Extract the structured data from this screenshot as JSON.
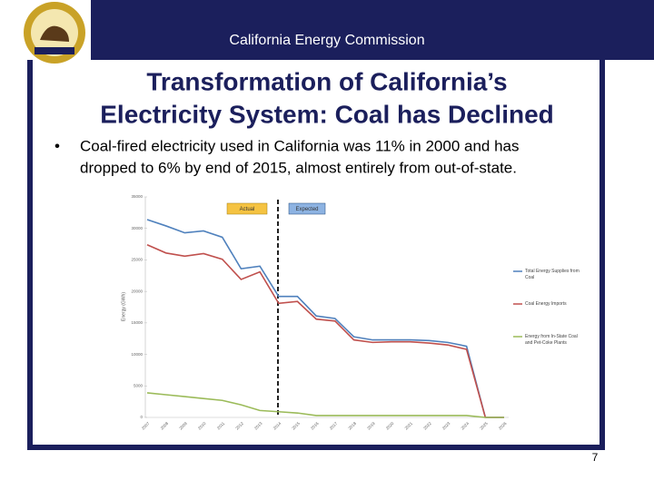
{
  "header": {
    "organization": "California Energy Commission"
  },
  "slide": {
    "title_line1": "Transformation of California’s",
    "title_line2": "Electricity System: Coal has Declined",
    "bullet_line1": "Coal-fired electricity used in California was 11% in 2000 and has",
    "bullet_line2": "dropped to 6% by end of 2015, almost entirely from out-of-state.",
    "page_number": "7"
  },
  "chart_data": {
    "type": "line",
    "y_label": "Energy (GWh)",
    "annotations": [
      "Actual",
      "Expected"
    ],
    "x": [
      "2007",
      "2008",
      "2009",
      "2010",
      "2011",
      "2012",
      "2013",
      "2014",
      "2015",
      "2016",
      "2017",
      "2018",
      "2019",
      "2020",
      "2021",
      "2022",
      "2023",
      "2024",
      "2025",
      "2026"
    ],
    "ylim": [
      0,
      35000
    ],
    "yticks": [
      0,
      5000,
      10000,
      15000,
      20000,
      25000,
      30000,
      35000
    ],
    "grid": false,
    "legend": "right",
    "series": [
      {
        "name": "Total Energy Supplies from Coal",
        "color": "#4f81bd",
        "values": [
          31400,
          30400,
          29300,
          29600,
          28600,
          23600,
          24000,
          19200,
          19200,
          16100,
          15700,
          12800,
          12300,
          12300,
          12300,
          12200,
          11900,
          11300,
          0,
          0
        ]
      },
      {
        "name": "Coal Energy Imports",
        "color": "#c0504d",
        "values": [
          27400,
          26100,
          25600,
          26000,
          25100,
          21900,
          23100,
          18100,
          18400,
          15600,
          15300,
          12300,
          11900,
          12000,
          12000,
          11800,
          11500,
          10800,
          0,
          0
        ]
      },
      {
        "name": "Energy from In-State Coal and Pet-Coke Plants",
        "color": "#9bbb59",
        "values": [
          3900,
          3600,
          3300,
          3000,
          2700,
          2000,
          1100,
          900,
          700,
          300,
          300,
          300,
          300,
          300,
          300,
          300,
          300,
          300,
          0,
          0
        ]
      }
    ]
  }
}
